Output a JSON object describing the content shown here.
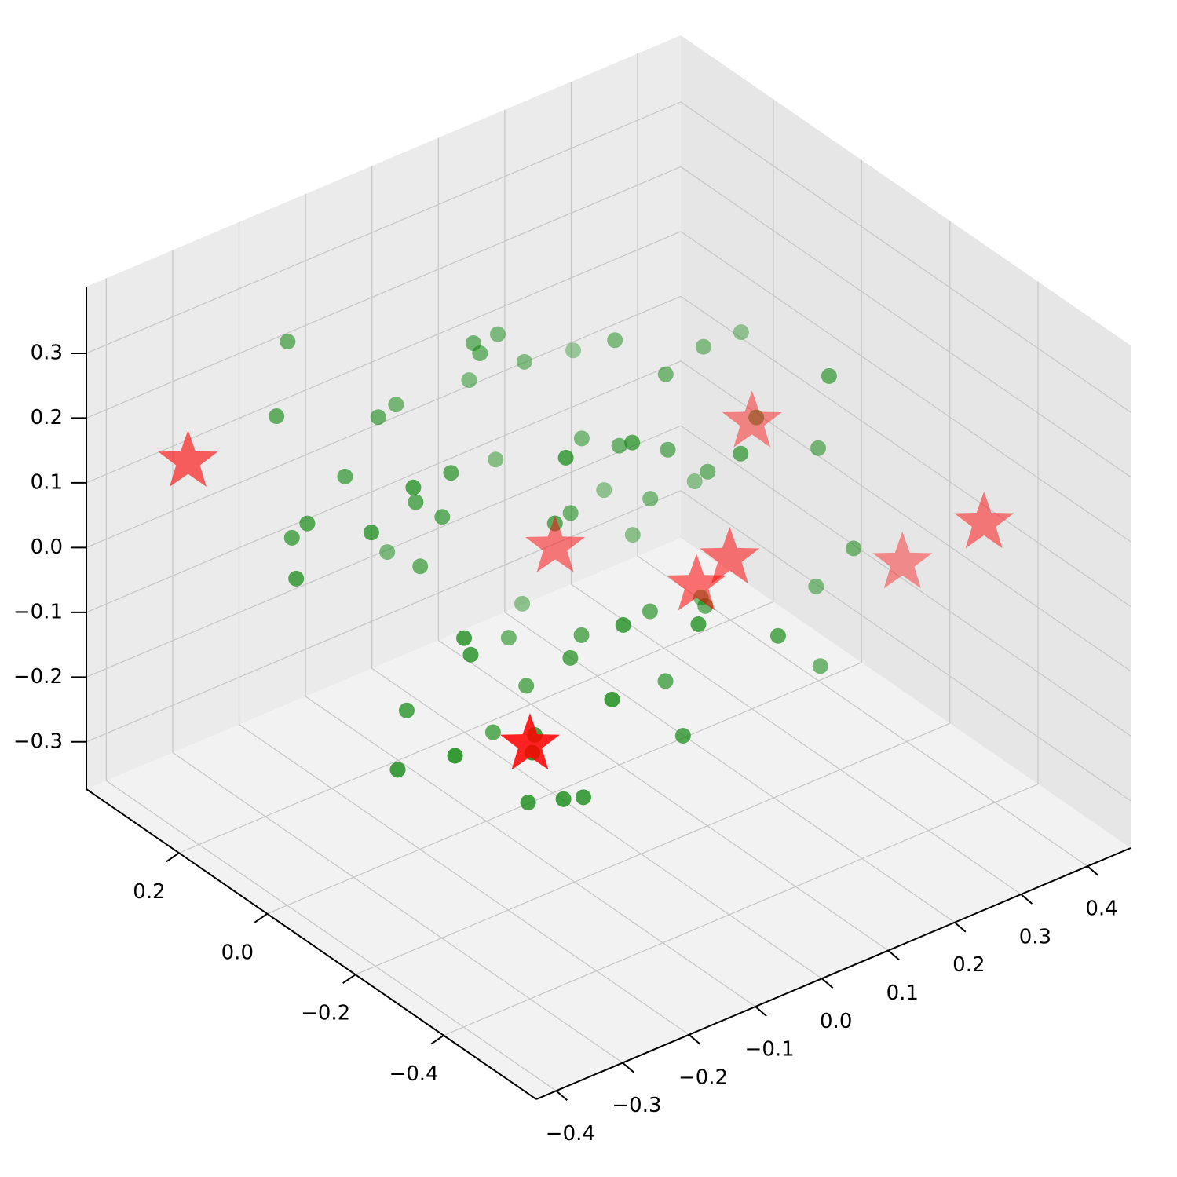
{
  "chart_data": {
    "type": "scatter3d",
    "xlim": [
      -0.43,
      0.465
    ],
    "ylim": [
      -0.61,
      0.41
    ],
    "zlim": [
      -0.373,
      0.403
    ],
    "xticks": [
      {
        "value": -0.4,
        "label": "−0.4"
      },
      {
        "value": -0.3,
        "label": "−0.3"
      },
      {
        "value": -0.2,
        "label": "−0.2"
      },
      {
        "value": -0.1,
        "label": "−0.1"
      },
      {
        "value": 0.0,
        "label": "0.0"
      },
      0.1,
      0.2,
      0.3,
      0.4
    ],
    "yticks": [
      {
        "value": -0.4,
        "label": "−0.4"
      },
      {
        "value": -0.2,
        "label": "−0.2"
      },
      {
        "value": 0.0,
        "label": "0.0"
      },
      0.2
    ],
    "zticks": [
      {
        "value": -0.3,
        "label": "−0.3"
      },
      {
        "value": -0.2,
        "label": "−0.2"
      },
      {
        "value": -0.1,
        "label": "−0.1"
      },
      {
        "value": 0.0,
        "label": "0.0"
      },
      0.1,
      0.2,
      0.3
    ],
    "grid": true,
    "series": [
      {
        "marker": "circle",
        "color": "#008000",
        "x": [
          -0.32,
          -0.28,
          -0.25,
          -0.22,
          -0.2,
          -0.18,
          -0.15,
          -0.12,
          -0.1,
          -0.08,
          -0.05,
          -0.03,
          0,
          0.02,
          0.05,
          0.08,
          0.1,
          0.12,
          0.15,
          0.18,
          0.2,
          0.22,
          0.25,
          0.28,
          0.3,
          -0.3,
          -0.26,
          -0.21,
          -0.17,
          -0.14,
          -0.11,
          -0.07,
          -0.04,
          -0.01,
          0.03,
          0.06,
          0.09,
          0.13,
          0.16,
          0.19,
          0.23,
          0.27,
          -0.24,
          -0.19,
          -0.13,
          -0.09,
          -0.06,
          -0.02,
          0.01,
          0.04,
          0.07,
          0.11,
          0.14,
          0.17,
          0.21,
          0.24,
          -0.16,
          -0.1,
          -0.04,
          0.02,
          0.08,
          0.14,
          -0.27,
          -0.23,
          0.26,
          0.32,
          0.35,
          0.33,
          -0.2,
          -0.12
        ],
        "y": [
          0.1,
          -0.2,
          0.25,
          0,
          -0.1,
          0.2,
          -0.25,
          0.05,
          0.15,
          -0.15,
          0.3,
          -0.05,
          0.1,
          -0.3,
          0.2,
          -0.1,
          0,
          0.25,
          -0.2,
          0.05,
          -0.05,
          0.15,
          -0.25,
          0.1,
          -0.15,
          -0.1,
          0.2,
          0,
          -0.2,
          0.1,
          -0.3,
          0.25,
          -0.1,
          0.15,
          -0.25,
          0.05,
          0.2,
          -0.15,
          0.1,
          -0.05,
          0.3,
          -0.2,
          0.05,
          -0.1,
          0.2,
          0,
          -0.25,
          0.15,
          -0.05,
          0.25,
          -0.15,
          0.1,
          -0.3,
          0,
          0.2,
          -0.1,
          -0.2,
          0.1,
          0,
          -0.15,
          0.25,
          -0.05,
          0.15,
          -0.3,
          0.05,
          -0.2,
          0.1,
          -0.1,
          0.3,
          -0.25
        ],
        "z": [
          0.05,
          -0.1,
          0.2,
          -0.15,
          0,
          0.1,
          -0.2,
          0.15,
          -0.05,
          0.25,
          -0.12,
          0.08,
          -0.18,
          0.02,
          0.22,
          -0.08,
          0.12,
          -0.25,
          0.18,
          -0.02,
          0.06,
          -0.14,
          0.28,
          -0.06,
          0.1,
          -0.16,
          0.04,
          0.19,
          -0.22,
          0.09,
          -0.04,
          0.14,
          -0.1,
          0.24,
          -0.18,
          0.01,
          0.16,
          -0.07,
          0.21,
          -0.13,
          0.07,
          -0.2,
          0.11,
          -0.03,
          0.17,
          -0.24,
          0.03,
          0.26,
          -0.11,
          0.13,
          -0.16,
          0.08,
          -0.05,
          0.2,
          -0.09,
          0.15,
          -0.12,
          0.05,
          -0.19,
          0.23,
          -0.01,
          0.12,
          0.09,
          -0.07,
          0.18,
          -0.04,
          0.14,
          -0.15,
          0.27,
          -0.21
        ]
      },
      {
        "marker": "star",
        "color": "#ff0000",
        "x": [
          -0.35,
          -0.3,
          0.45,
          0.3,
          0.2,
          0.07,
          0.46,
          0.15
        ],
        "y": [
          0.3,
          -0.4,
          -0.3,
          0,
          -0.1,
          0.1,
          -0.1,
          -0.1
        ],
        "z": [
          0.15,
          0.02,
          -0.01,
          0.07,
          -0.05,
          -0.07,
          -0.17,
          -0.07
        ]
      }
    ]
  }
}
